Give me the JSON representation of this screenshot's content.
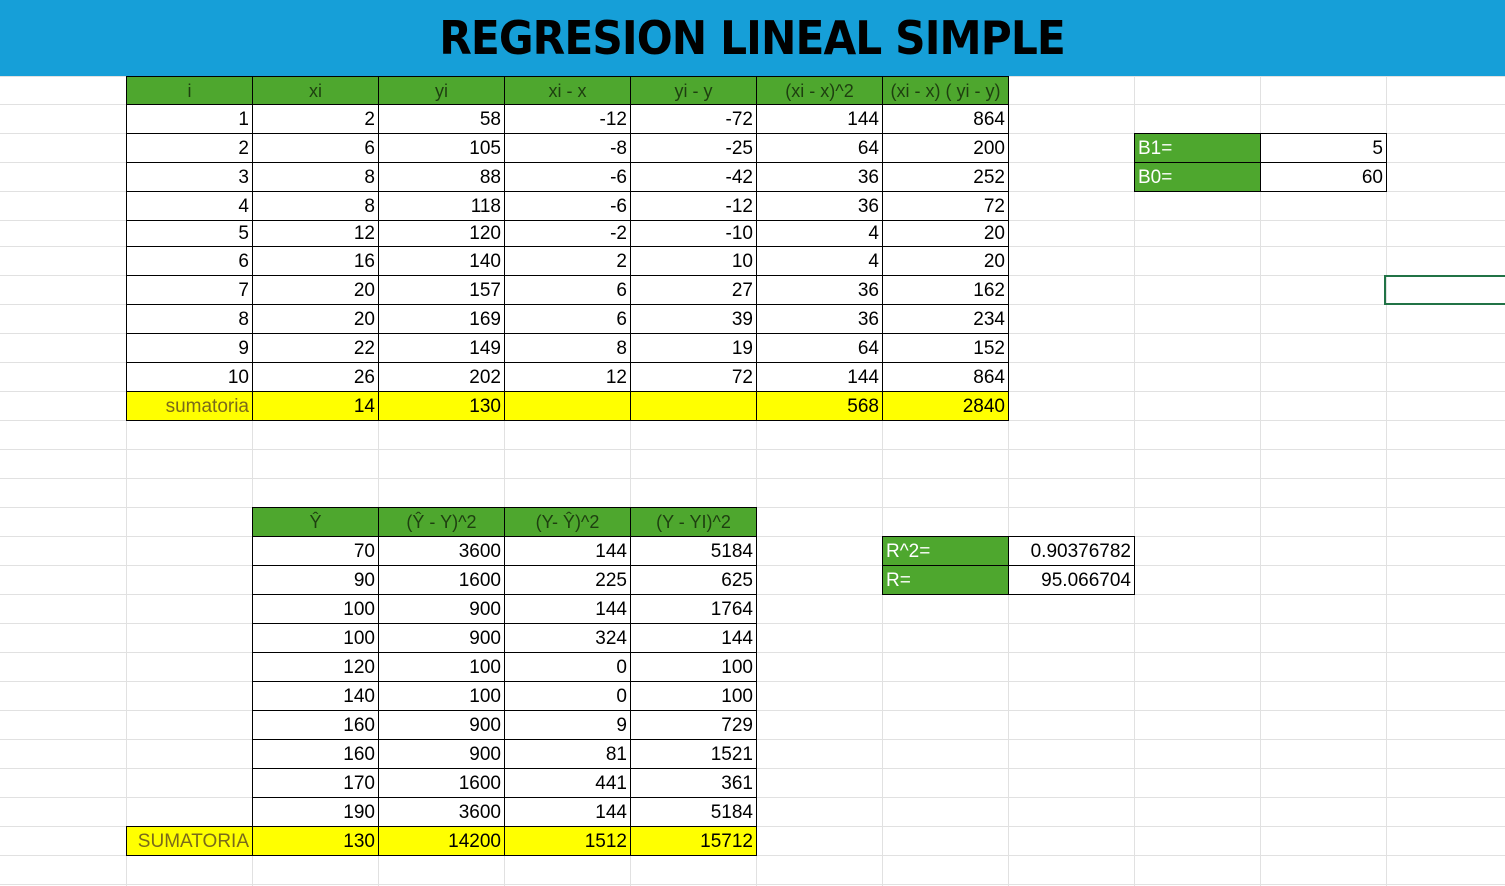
{
  "title": "REGRESION LINEAL SIMPLE",
  "colors": {
    "banner": "#169fd8",
    "header": "#4ea72e",
    "sum": "#ffff00",
    "grid": "#e1e1e1",
    "selection": "#217346"
  },
  "table1": {
    "headers": [
      "i",
      "xi",
      "yi",
      "xi - x",
      "yi - y",
      "(xi - x)^2",
      "(xi - x) ( yi - y)"
    ],
    "rows": [
      [
        "1",
        "2",
        "58",
        "-12",
        "-72",
        "144",
        "864"
      ],
      [
        "2",
        "6",
        "105",
        "-8",
        "-25",
        "64",
        "200"
      ],
      [
        "3",
        "8",
        "88",
        "-6",
        "-42",
        "36",
        "252"
      ],
      [
        "4",
        "8",
        "118",
        "-6",
        "-12",
        "36",
        "72"
      ],
      [
        "5",
        "12",
        "120",
        "-2",
        "-10",
        "4",
        "20"
      ],
      [
        "6",
        "16",
        "140",
        "2",
        "10",
        "4",
        "20"
      ],
      [
        "7",
        "20",
        "157",
        "6",
        "27",
        "36",
        "162"
      ],
      [
        "8",
        "20",
        "169",
        "6",
        "39",
        "36",
        "234"
      ],
      [
        "9",
        "22",
        "149",
        "8",
        "19",
        "64",
        "152"
      ],
      [
        "10",
        "26",
        "202",
        "12",
        "72",
        "144",
        "864"
      ]
    ],
    "sum": [
      "sumatoria",
      "14",
      "130",
      "",
      "",
      "568",
      "2840"
    ]
  },
  "coef": [
    {
      "label": "B1=",
      "value": "5"
    },
    {
      "label": "B0=",
      "value": "60"
    }
  ],
  "table2": {
    "headers": [
      "Ŷ",
      "(Ŷ - Y)^2",
      "(Y- Ŷ)^2",
      "(Y - YI)^2"
    ],
    "rows": [
      [
        "70",
        "3600",
        "144",
        "5184"
      ],
      [
        "90",
        "1600",
        "225",
        "625"
      ],
      [
        "100",
        "900",
        "144",
        "1764"
      ],
      [
        "100",
        "900",
        "324",
        "144"
      ],
      [
        "120",
        "100",
        "0",
        "100"
      ],
      [
        "140",
        "100",
        "0",
        "100"
      ],
      [
        "160",
        "900",
        "9",
        "729"
      ],
      [
        "160",
        "900",
        "81",
        "1521"
      ],
      [
        "170",
        "1600",
        "441",
        "361"
      ],
      [
        "190",
        "3600",
        "144",
        "5184"
      ]
    ],
    "sum_label": "SUMATORIA",
    "sum": [
      "130",
      "14200",
      "1512",
      "15712"
    ]
  },
  "r_stats": [
    {
      "label": "R^2=",
      "value": "0.90376782"
    },
    {
      "label": "R=",
      "value": "95.066704"
    }
  ]
}
